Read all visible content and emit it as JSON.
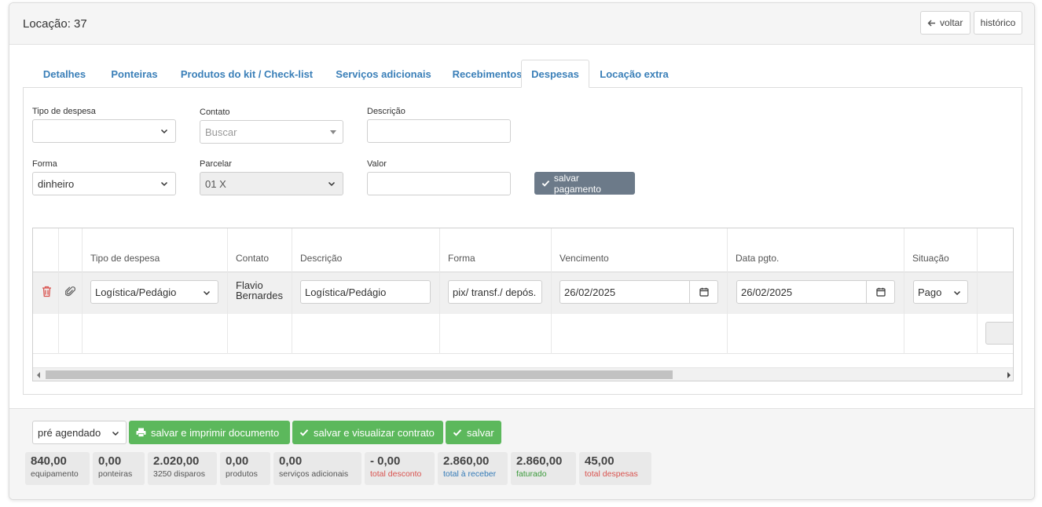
{
  "header": {
    "title": "Locação: 37",
    "back_label": "voltar",
    "history_label": "histórico"
  },
  "tabs": [
    {
      "label": "Detalhes"
    },
    {
      "label": "Ponteiras"
    },
    {
      "label": "Produtos do kit / Check-list"
    },
    {
      "label": "Serviços adicionais"
    },
    {
      "label": "Recebimentos"
    },
    {
      "label": "Despesas"
    },
    {
      "label": "Locação extra"
    }
  ],
  "active_tab": "Despesas",
  "form": {
    "tipo_label": "Tipo de despesa",
    "tipo_value": "",
    "contato_label": "Contato",
    "contato_placeholder": "Buscar",
    "descricao_label": "Descrição",
    "descricao_value": "",
    "forma_label": "Forma",
    "forma_value": "dinheiro",
    "parcelar_label": "Parcelar",
    "parcelar_value": "01 X",
    "valor_label": "Valor",
    "valor_value": "",
    "save_payment_label": "salvar pagamento"
  },
  "table": {
    "headers": {
      "tipo": "Tipo de despesa",
      "contato": "Contato",
      "descricao": "Descrição",
      "forma": "Forma",
      "vencimento": "Vencimento",
      "data_pgto": "Data pgto.",
      "situacao": "Situação"
    },
    "rows": [
      {
        "tipo": "Logística/Pedágio",
        "contato": "Flavio Bernardes",
        "descricao": "Logística/Pedágio",
        "forma": "pix/ transf./ depós.",
        "vencimento": "26/02/2025",
        "data_pgto": "26/02/2025",
        "situacao": "Pago"
      }
    ]
  },
  "footer": {
    "status_value": "pré agendado",
    "btn_print": "salvar e imprimir documento",
    "btn_contract": "salvar e visualizar contrato",
    "btn_save": "salvar",
    "stats": [
      {
        "value": "840,00",
        "label": "equipamento",
        "color": "#555555"
      },
      {
        "value": "0,00",
        "label": "ponteiras",
        "color": "#555555"
      },
      {
        "value": "2.020,00",
        "label": "3250 disparos",
        "color": "#555555"
      },
      {
        "value": "0,00",
        "label": "produtos",
        "color": "#555555"
      },
      {
        "value": "0,00",
        "label": "serviços adicionais",
        "color": "#555555"
      },
      {
        "value": "- 0,00",
        "label": "total desconto",
        "color": "#d9534f"
      },
      {
        "value": "2.860,00",
        "label": "total à receber",
        "color": "#337ab7"
      },
      {
        "value": "2.860,00",
        "label": "faturado",
        "color": "#3c9a3c"
      },
      {
        "value": "45,00",
        "label": "total despesas",
        "color": "#d9534f"
      }
    ]
  },
  "colors": {
    "accent_tab": "#3a7fb8",
    "success": "#5cb85c",
    "secondary_button": "#6c7a89",
    "danger": "#d9534f"
  },
  "icons": [
    "arrow-left-icon",
    "chevron-down-icon",
    "check-icon",
    "trash-icon",
    "paperclip-icon",
    "calendar-icon",
    "printer-icon"
  ]
}
